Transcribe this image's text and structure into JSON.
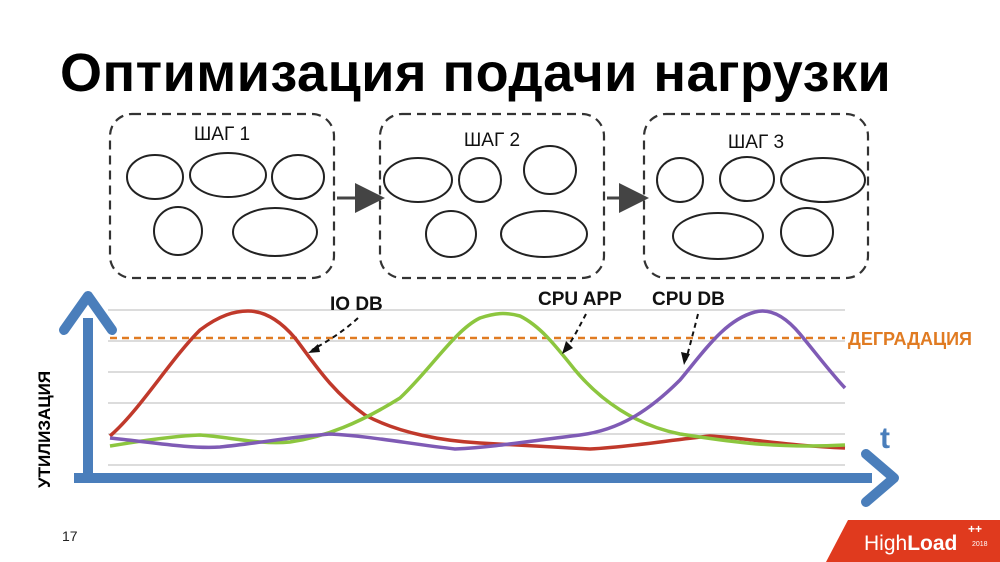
{
  "title": "Оптимизация подачи нагрузки",
  "steps": [
    {
      "label": "ШАГ 1"
    },
    {
      "label": "ШАГ 2"
    },
    {
      "label": "ШАГ 3"
    }
  ],
  "axis": {
    "y_label": "УТИЛИЗАЦИЯ",
    "x_label": "t"
  },
  "threshold": {
    "label": "ДЕГРАДАЦИЯ",
    "color": "#e07b22"
  },
  "series": [
    {
      "name": "IO DB",
      "color": "#c0392b"
    },
    {
      "name": "CPU APP",
      "color": "#8cc63f"
    },
    {
      "name": "CPU DB",
      "color": "#7f5bb5"
    }
  ],
  "slide_number": "17",
  "logo": {
    "text_light": "High",
    "text_bold": "Load",
    "superscript": "++",
    "year": "2018",
    "color": "#e03a1e"
  },
  "colors": {
    "axis": "#4a7ebb",
    "grid": "#c8c8c8",
    "step_border": "#333333"
  }
}
